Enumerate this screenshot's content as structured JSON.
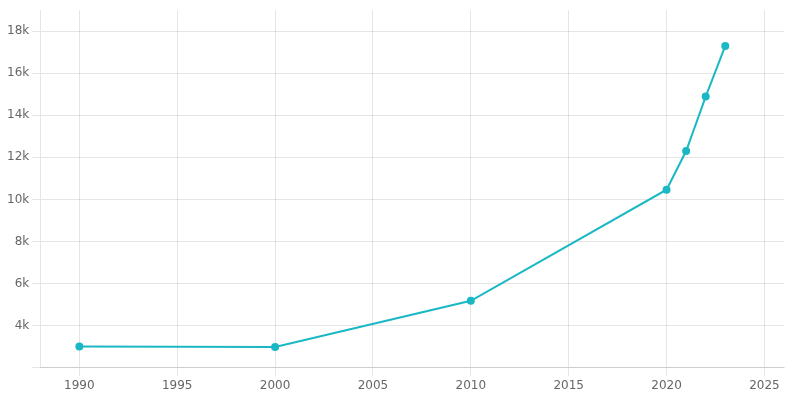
{
  "chart_data": {
    "type": "line",
    "x": [
      1990,
      2000,
      2010,
      2020,
      2021,
      2022,
      2023
    ],
    "values": [
      3000,
      2979,
      5179,
      10464,
      12300,
      14893,
      17299
    ],
    "color": "#1ab8c4",
    "marker": "circle",
    "xlim": [
      1988,
      2026
    ],
    "xticks": [
      1990,
      1995,
      2000,
      2005,
      2010,
      2015,
      2020,
      2025
    ],
    "ylim": [
      2000,
      19000
    ],
    "yticks": [
      {
        "value": 2000,
        "label": ""
      },
      {
        "value": 4000,
        "label": "4k"
      },
      {
        "value": 6000,
        "label": "6k"
      },
      {
        "value": 8000,
        "label": "8k"
      },
      {
        "value": 10000,
        "label": "10k"
      },
      {
        "value": 12000,
        "label": "12k"
      },
      {
        "value": 14000,
        "label": "14k"
      },
      {
        "value": 16000,
        "label": "16k"
      },
      {
        "value": 18000,
        "label": "18k"
      }
    ],
    "grid": true
  }
}
